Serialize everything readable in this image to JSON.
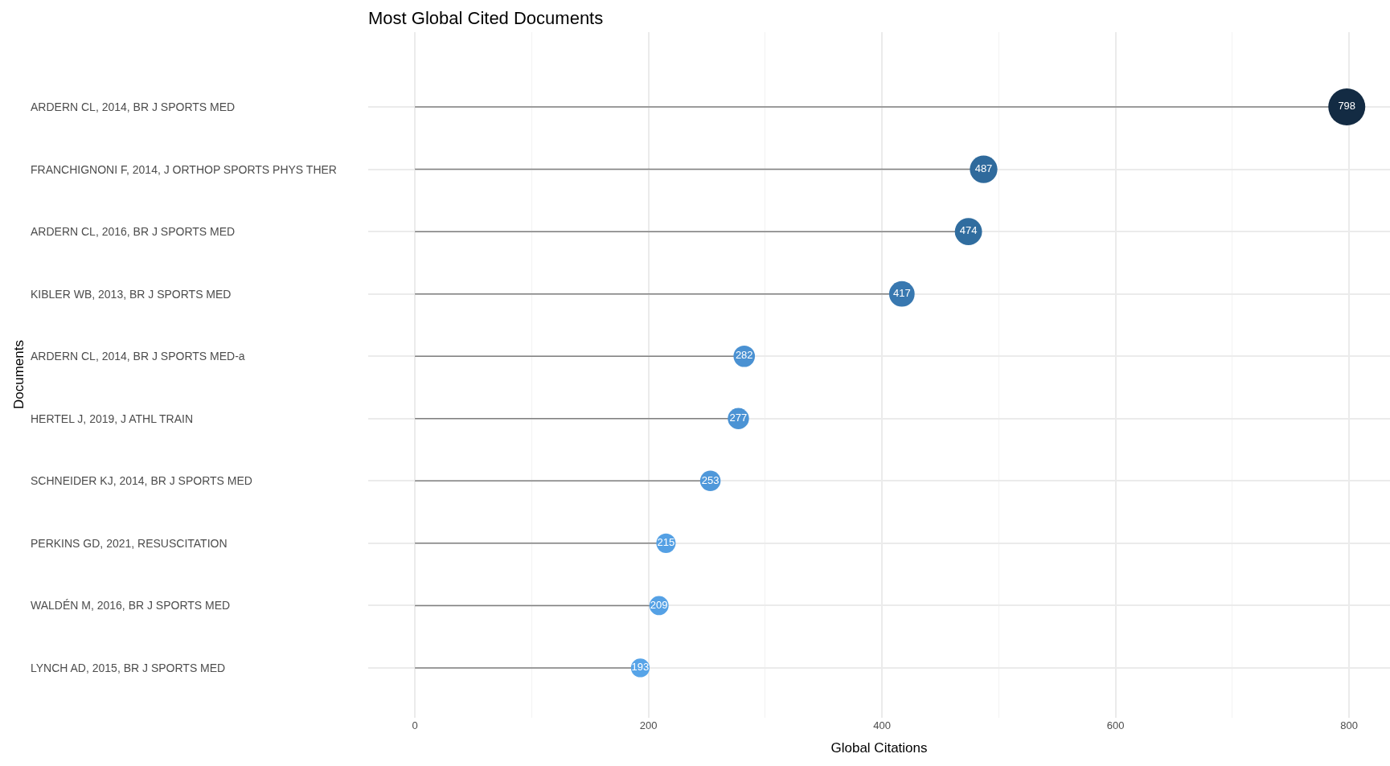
{
  "chart_data": {
    "type": "lollipop",
    "orientation": "horizontal",
    "title": "Most Global Cited Documents",
    "xlabel": "Global Citations",
    "ylabel": "Documents",
    "categories": [
      "ARDERN CL, 2014, BR J SPORTS MED",
      "FRANCHIGNONI F, 2014, J ORTHOP SPORTS PHYS THER",
      "ARDERN CL, 2016, BR J SPORTS MED",
      "KIBLER WB, 2013, BR J SPORTS MED",
      "ARDERN CL, 2014, BR J SPORTS MED-a",
      "HERTEL J, 2019, J ATHL TRAIN",
      "SCHNEIDER KJ, 2014, BR J SPORTS MED",
      "PERKINS GD, 2021, RESUSCITATION",
      "WALDÉN M, 2016, BR J SPORTS MED",
      "LYNCH AD, 2015, BR J SPORTS MED"
    ],
    "values": [
      798,
      487,
      474,
      417,
      282,
      277,
      253,
      215,
      209,
      193
    ],
    "sizes": [
      1,
      0.61,
      0.594,
      0.523,
      0.353,
      0.347,
      0.317,
      0.269,
      0.262,
      0.242
    ],
    "colors": [
      "#132b43",
      "#2f6a9c",
      "#306d9f",
      "#3878b0",
      "#4a91d2",
      "#4b93d4",
      "#4f98da",
      "#54a0e4",
      "#55a1e5",
      "#57a4e8"
    ],
    "data_labels": true,
    "xlim": [
      -40,
      835
    ],
    "xticks": [
      0,
      200,
      400,
      600,
      800
    ],
    "grid": true
  }
}
